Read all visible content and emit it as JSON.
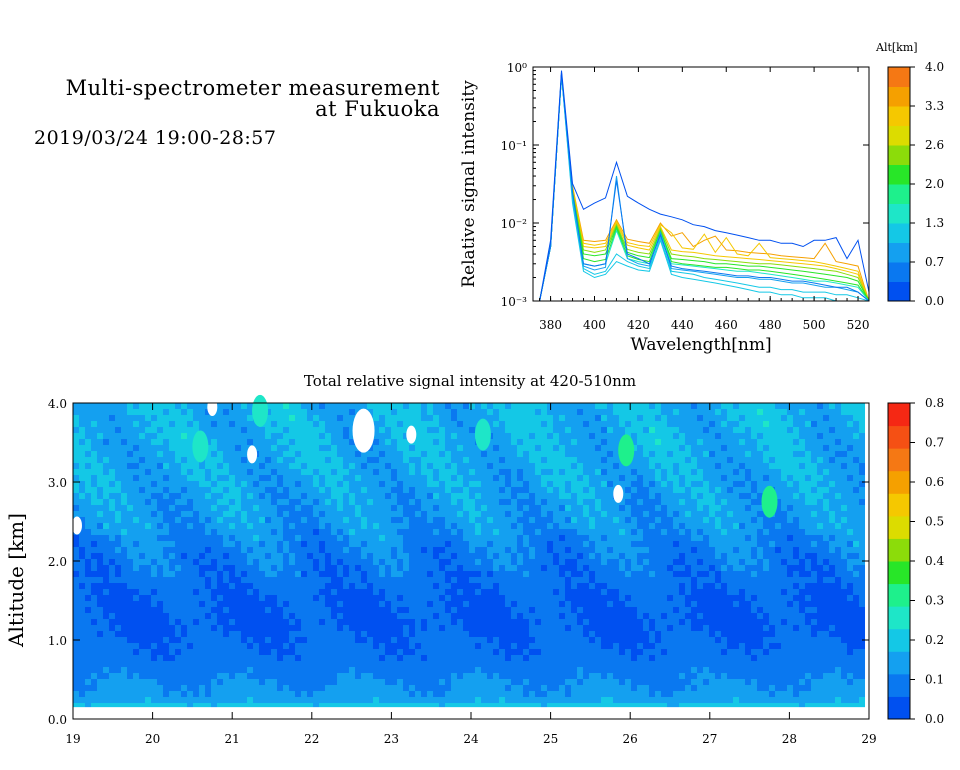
{
  "header": {
    "title_line1": "Multi-spectrometer measurement",
    "title_line2": "at Fukuoka",
    "datetime": "2019/03/24 19:00-28:57"
  },
  "chart_data": [
    {
      "type": "line",
      "xlabel": "Wavelength[nm]",
      "ylabel": "Relative signal intensity",
      "xlim": [
        372,
        525
      ],
      "ylim": [
        0.001,
        1
      ],
      "yscale": "log",
      "xticks": [
        380,
        400,
        420,
        440,
        460,
        480,
        500,
        520
      ],
      "yticks": [
        {
          "value": 1,
          "label": "10⁰"
        },
        {
          "value": 0.1,
          "label": "10⁻¹"
        },
        {
          "value": 0.01,
          "label": "10⁻²"
        },
        {
          "value": 0.001,
          "label": "10⁻³"
        }
      ],
      "x": [
        375,
        380,
        385,
        390,
        395,
        400,
        405,
        410,
        415,
        420,
        425,
        430,
        435,
        440,
        445,
        450,
        455,
        460,
        465,
        470,
        475,
        480,
        485,
        490,
        495,
        500,
        505,
        510,
        515,
        520,
        525
      ],
      "colorbar": {
        "title": "Alt[km]",
        "ticks": [
          "4.0",
          "3.3",
          "2.6",
          "2.0",
          "1.3",
          "0.7",
          "0.0"
        ],
        "colors": [
          "#0050f0",
          "#0a78f0",
          "#14a0f0",
          "#14c8e6",
          "#1ee6c8",
          "#1ef08c",
          "#28e628",
          "#8cdc0a",
          "#dcdc00",
          "#f5c800",
          "#f5a000",
          "#f57814"
        ]
      },
      "series": [
        {
          "altitude": 0.0,
          "values": [
            0.001,
            0.006,
            0.9,
            0.032,
            0.015,
            0.018,
            0.021,
            0.06,
            0.022,
            0.018,
            0.015,
            0.013,
            0.012,
            0.011,
            0.0095,
            0.009,
            0.008,
            0.0075,
            0.007,
            0.0065,
            0.006,
            0.006,
            0.0055,
            0.0055,
            0.005,
            0.006,
            0.006,
            0.0065,
            0.0035,
            0.006,
            0.0013
          ]
        },
        {
          "altitude": 0.35,
          "values": [
            0.001,
            0.005,
            0.85,
            0.025,
            0.003,
            0.0028,
            0.003,
            0.035,
            0.004,
            0.0035,
            0.003,
            0.007,
            0.0028,
            0.0026,
            0.0025,
            0.0024,
            0.0023,
            0.0022,
            0.0021,
            0.0021,
            0.002,
            0.002,
            0.0019,
            0.0018,
            0.0018,
            0.0017,
            0.0016,
            0.0015,
            0.0015,
            0.0013,
            0.001
          ]
        },
        {
          "altitude": 0.7,
          "values": [
            0.001,
            0.005,
            0.8,
            0.024,
            0.0028,
            0.0025,
            0.0027,
            0.04,
            0.0035,
            0.003,
            0.0028,
            0.0075,
            0.0026,
            0.0025,
            0.0024,
            0.0023,
            0.0022,
            0.0021,
            0.002,
            0.002,
            0.0019,
            0.0019,
            0.0018,
            0.0017,
            0.0017,
            0.0016,
            0.0015,
            0.0015,
            0.0014,
            0.0013,
            0.001
          ]
        },
        {
          "altitude": 1.0,
          "values": [
            0.001,
            0.005,
            0.8,
            0.02,
            0.0026,
            0.0022,
            0.0024,
            0.004,
            0.0032,
            0.0028,
            0.0026,
            0.0065,
            0.0024,
            0.0023,
            0.0022,
            0.002,
            0.0019,
            0.0018,
            0.0017,
            0.0016,
            0.0015,
            0.0015,
            0.0014,
            0.0014,
            0.0013,
            0.0013,
            0.0013,
            0.0012,
            0.0012,
            0.0011,
            0.001
          ]
        },
        {
          "altitude": 1.3,
          "values": [
            0.001,
            0.005,
            0.8,
            0.018,
            0.0024,
            0.002,
            0.0022,
            0.0032,
            0.0028,
            0.0025,
            0.0024,
            0.006,
            0.0022,
            0.002,
            0.0019,
            0.0018,
            0.0017,
            0.0016,
            0.0015,
            0.0014,
            0.0013,
            0.0013,
            0.0012,
            0.0012,
            0.0011,
            0.0011,
            0.0011,
            0.001,
            0.001,
            0.001,
            0.001
          ]
        },
        {
          "altitude": 1.65,
          "values": [
            0.001,
            0.005,
            0.8,
            0.022,
            0.003,
            0.0028,
            0.003,
            0.008,
            0.0035,
            0.0032,
            0.003,
            0.0075,
            0.003,
            0.0029,
            0.0028,
            0.0027,
            0.0026,
            0.0025,
            0.0024,
            0.0024,
            0.0023,
            0.0022,
            0.0021,
            0.002,
            0.0019,
            0.0018,
            0.0018,
            0.0017,
            0.0016,
            0.0015,
            0.001
          ]
        },
        {
          "altitude": 2.0,
          "values": [
            0.001,
            0.005,
            0.8,
            0.024,
            0.0035,
            0.0032,
            0.0034,
            0.0085,
            0.0038,
            0.0034,
            0.0032,
            0.0078,
            0.0032,
            0.003,
            0.0029,
            0.0028,
            0.0027,
            0.0027,
            0.0026,
            0.0025,
            0.0025,
            0.0024,
            0.0023,
            0.0022,
            0.0021,
            0.002,
            0.0019,
            0.0018,
            0.0017,
            0.0016,
            0.001
          ]
        },
        {
          "altitude": 2.3,
          "values": [
            0.001,
            0.005,
            0.8,
            0.025,
            0.004,
            0.0038,
            0.004,
            0.009,
            0.0042,
            0.0038,
            0.0036,
            0.008,
            0.0035,
            0.0034,
            0.0033,
            0.0032,
            0.003,
            0.003,
            0.0029,
            0.0028,
            0.0028,
            0.0027,
            0.0026,
            0.0025,
            0.0024,
            0.0023,
            0.0022,
            0.0021,
            0.002,
            0.0018,
            0.001
          ]
        },
        {
          "altitude": 2.6,
          "values": [
            0.001,
            0.005,
            0.8,
            0.026,
            0.0045,
            0.0042,
            0.0045,
            0.0095,
            0.0046,
            0.0042,
            0.004,
            0.0085,
            0.004,
            0.0038,
            0.0037,
            0.0035,
            0.0034,
            0.0033,
            0.0032,
            0.0031,
            0.003,
            0.003,
            0.0029,
            0.0028,
            0.0027,
            0.0026,
            0.0025,
            0.0024,
            0.0022,
            0.002,
            0.001
          ]
        },
        {
          "altitude": 3.0,
          "values": [
            0.001,
            0.005,
            0.8,
            0.027,
            0.005,
            0.0048,
            0.005,
            0.01,
            0.0052,
            0.0048,
            0.0045,
            0.009,
            0.0045,
            0.0043,
            0.0042,
            0.004,
            0.0038,
            0.0037,
            0.0036,
            0.0035,
            0.0034,
            0.0033,
            0.0032,
            0.0031,
            0.003,
            0.0029,
            0.0028,
            0.0026,
            0.0024,
            0.0022,
            0.001
          ]
        },
        {
          "altitude": 3.3,
          "values": [
            0.001,
            0.005,
            0.8,
            0.028,
            0.0055,
            0.0052,
            0.0055,
            0.0105,
            0.0056,
            0.0052,
            0.005,
            0.0095,
            0.0075,
            0.0048,
            0.0046,
            0.0072,
            0.0042,
            0.0065,
            0.004,
            0.0038,
            0.0055,
            0.0036,
            0.0035,
            0.0034,
            0.0033,
            0.0032,
            0.003,
            0.0028,
            0.0026,
            0.0024,
            0.001
          ]
        },
        {
          "altitude": 3.65,
          "values": [
            0.001,
            0.005,
            0.8,
            0.03,
            0.006,
            0.0058,
            0.006,
            0.011,
            0.0062,
            0.0058,
            0.0055,
            0.01,
            0.0068,
            0.0075,
            0.005,
            0.006,
            0.0068,
            0.0045,
            0.0044,
            0.0042,
            0.0041,
            0.004,
            0.0038,
            0.0037,
            0.0036,
            0.0035,
            0.0055,
            0.0032,
            0.003,
            0.0028,
            0.001
          ]
        }
      ]
    },
    {
      "type": "heatmap",
      "title": "Total relative signal intensity at 420-510nm",
      "xlabel": "",
      "ylabel": "Altitude [km]",
      "xlim": [
        19,
        29
      ],
      "ylim": [
        0,
        4
      ],
      "xticks": [
        "19",
        "20",
        "21",
        "22",
        "23",
        "24",
        "25",
        "26",
        "27",
        "28",
        "29"
      ],
      "yticks": [
        "0.0",
        "1.0",
        "2.0",
        "3.0",
        "4.0"
      ],
      "data_end_x": 28.95,
      "data_bottom_y": 0.15,
      "altitude_profile": [
        {
          "altitude": 0.15,
          "value": 0.2
        },
        {
          "altitude": 0.2,
          "value": 0.17
        },
        {
          "altitude": 0.3,
          "value": 0.13
        },
        {
          "altitude": 0.5,
          "value": 0.11
        },
        {
          "altitude": 0.8,
          "value": 0.07
        },
        {
          "altitude": 1.2,
          "value": 0.05
        },
        {
          "altitude": 1.6,
          "value": 0.06
        },
        {
          "altitude": 2.0,
          "value": 0.09
        },
        {
          "altitude": 2.5,
          "value": 0.13
        },
        {
          "altitude": 3.0,
          "value": 0.15
        },
        {
          "altitude": 3.5,
          "value": 0.16
        },
        {
          "altitude": 4.0,
          "value": 0.17
        }
      ],
      "hotspots": [
        {
          "time": 25.95,
          "altitude": 3.4,
          "value": 0.3
        },
        {
          "time": 27.75,
          "altitude": 2.75,
          "value": 0.33
        },
        {
          "time": 24.15,
          "altitude": 3.6,
          "value": 0.25
        },
        {
          "time": 20.6,
          "altitude": 3.45,
          "value": 0.25
        },
        {
          "time": 21.35,
          "altitude": 3.9,
          "value": 0.27
        }
      ],
      "gaps": [
        {
          "time": 22.65,
          "altitude": 3.65
        },
        {
          "time": 21.25,
          "altitude": 3.35
        },
        {
          "time": 20.75,
          "altitude": 3.95
        },
        {
          "time": 25.85,
          "altitude": 2.85
        },
        {
          "time": 19.05,
          "altitude": 2.45
        },
        {
          "time": 23.25,
          "altitude": 3.6
        }
      ],
      "colorbar": {
        "ticks": [
          "0.0",
          "0.1",
          "0.2",
          "0.3",
          "0.4",
          "0.5",
          "0.6",
          "0.7",
          "0.8"
        ],
        "colors": [
          "#0050f0",
          "#0a78f0",
          "#14a0f0",
          "#14c8e6",
          "#1ee6c8",
          "#1ef08c",
          "#28e628",
          "#8cdc0a",
          "#dcdc00",
          "#f5c800",
          "#f5a000",
          "#f57814",
          "#f55014",
          "#f52814"
        ]
      }
    }
  ]
}
